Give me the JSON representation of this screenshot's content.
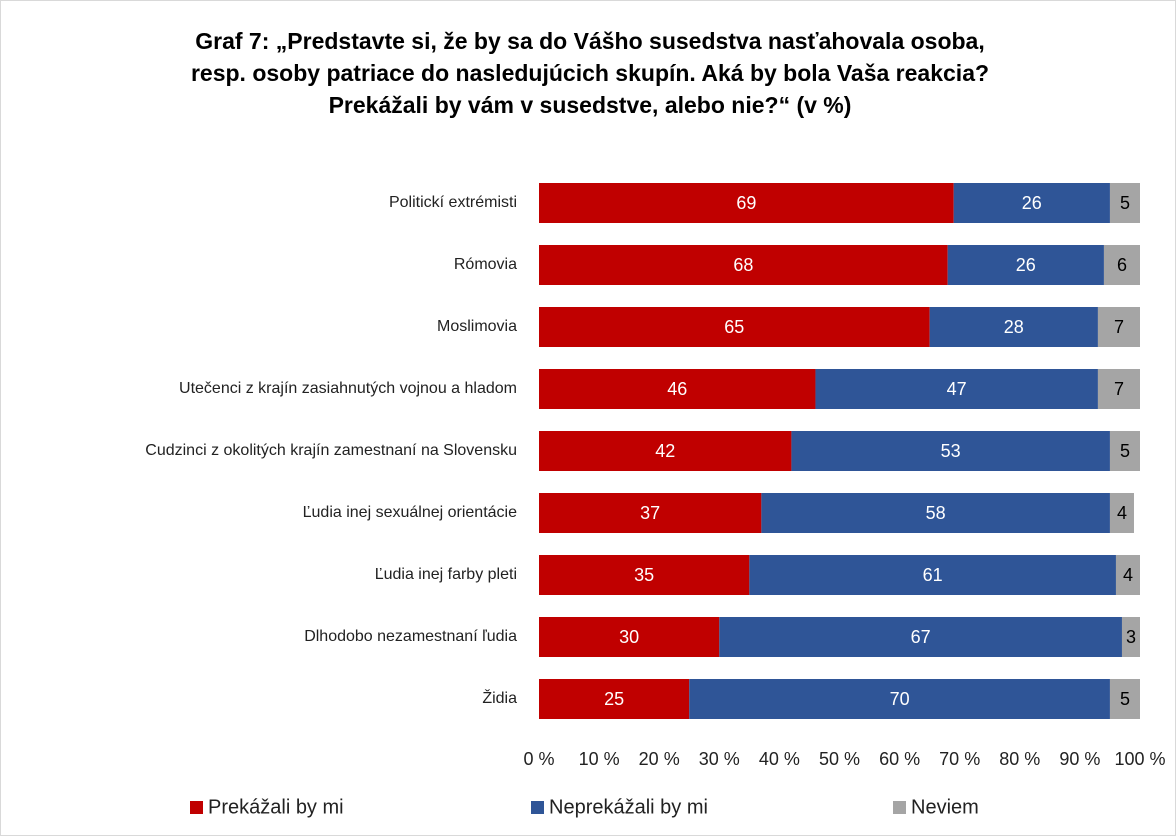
{
  "chart_data": {
    "type": "stacked-barh",
    "title": [
      "Graf 7: „Predstavte si, že by sa do Vášho susedstva nasťahovala osoba,",
      "resp. osoby patriace do nasledujúcich skupín. Aká by bola Vaša reakcia?",
      "Prekážali by vám v susedstve, alebo nie?“ (v %)"
    ],
    "categories": [
      "Politickí extrémisti",
      "Rómovia",
      "Moslimovia",
      "Utečenci z krajín zasiahnutých vojnou a hladom",
      "Cudzinci z okolitých krajín zamestnaní na Slovensku",
      "Ľudia inej sexuálnej orientácie",
      "Ľudia inej farby pleti",
      "Dlhodobo nezamestnaní ľudia",
      "Židia"
    ],
    "series": [
      {
        "name": "Prekážali by mi",
        "color": "#c00000",
        "label_color": "#ffffff",
        "values": [
          69,
          68,
          65,
          46,
          42,
          37,
          35,
          30,
          25
        ]
      },
      {
        "name": "Neprekážali by mi",
        "color": "#2f5597",
        "label_color": "#ffffff",
        "values": [
          26,
          26,
          28,
          47,
          53,
          58,
          61,
          67,
          70
        ]
      },
      {
        "name": "Neviem",
        "color": "#a5a5a5",
        "label_color": "#000000",
        "values": [
          5,
          6,
          7,
          7,
          5,
          4,
          4,
          3,
          5
        ]
      }
    ],
    "xlim": [
      0,
      100
    ],
    "xticks": [
      {
        "value": 0,
        "label": "0 %"
      },
      {
        "value": 10,
        "label": "10 %"
      },
      {
        "value": 20,
        "label": "20 %"
      },
      {
        "value": 30,
        "label": "30 %"
      },
      {
        "value": 40,
        "label": "40 %"
      },
      {
        "value": 50,
        "label": "50 %"
      },
      {
        "value": 60,
        "label": "60 %"
      },
      {
        "value": 70,
        "label": "70 %"
      },
      {
        "value": 80,
        "label": "80 %"
      },
      {
        "value": 90,
        "label": "90 %"
      },
      {
        "value": 100,
        "label": "100 %"
      }
    ],
    "legend": "bottom"
  }
}
